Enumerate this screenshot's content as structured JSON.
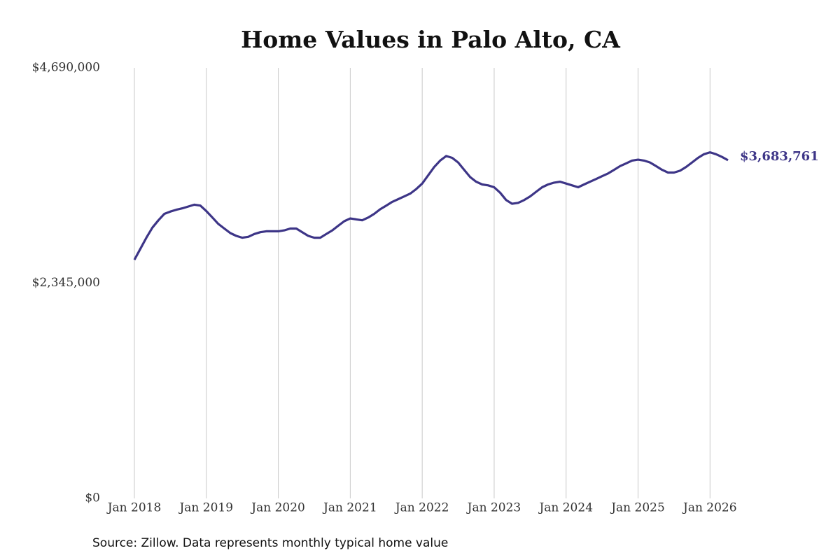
{
  "chart_data": {
    "type": "line",
    "title": "Home Values in Palo Alto, CA",
    "source": "Source: Zillow. Data represents monthly typical home value",
    "x": [
      "2018-01",
      "2018-02",
      "2018-03",
      "2018-04",
      "2018-05",
      "2018-06",
      "2018-07",
      "2018-08",
      "2018-09",
      "2018-10",
      "2018-11",
      "2018-12",
      "2019-01",
      "2019-02",
      "2019-03",
      "2019-04",
      "2019-05",
      "2019-06",
      "2019-07",
      "2019-08",
      "2019-09",
      "2019-10",
      "2019-11",
      "2019-12",
      "2020-01",
      "2020-02",
      "2020-03",
      "2020-04",
      "2020-05",
      "2020-06",
      "2020-07",
      "2020-08",
      "2020-09",
      "2020-10",
      "2020-11",
      "2020-12",
      "2021-01",
      "2021-02",
      "2021-03",
      "2021-04",
      "2021-05",
      "2021-06",
      "2021-07",
      "2021-08",
      "2021-09",
      "2021-10",
      "2021-11",
      "2021-12",
      "2022-01",
      "2022-02",
      "2022-03",
      "2022-04",
      "2022-05",
      "2022-06",
      "2022-07",
      "2022-08",
      "2022-09",
      "2022-10",
      "2022-11",
      "2022-12",
      "2023-01",
      "2023-02",
      "2023-03",
      "2023-04",
      "2023-05",
      "2023-06",
      "2023-07",
      "2023-08",
      "2023-09",
      "2023-10",
      "2023-11",
      "2023-12",
      "2024-01",
      "2024-02",
      "2024-03",
      "2024-04",
      "2024-05",
      "2024-06",
      "2024-07",
      "2024-08",
      "2024-09",
      "2024-10",
      "2024-11",
      "2024-12",
      "2025-01",
      "2025-02",
      "2025-03",
      "2025-04",
      "2025-05",
      "2025-06",
      "2025-07",
      "2025-08",
      "2025-09",
      "2025-10",
      "2025-11",
      "2025-12",
      "2026-01",
      "2026-02",
      "2026-03",
      "2026-04"
    ],
    "series": [
      {
        "name": "Palo Alto, CA",
        "color": "#3d3587",
        "values": [
          2600000,
          2720000,
          2840000,
          2950000,
          3030000,
          3100000,
          3125000,
          3145000,
          3160000,
          3180000,
          3200000,
          3190000,
          3130000,
          3060000,
          2990000,
          2940000,
          2890000,
          2860000,
          2840000,
          2850000,
          2880000,
          2900000,
          2910000,
          2910000,
          2910000,
          2920000,
          2940000,
          2940000,
          2900000,
          2860000,
          2840000,
          2840000,
          2880000,
          2920000,
          2970000,
          3020000,
          3050000,
          3040000,
          3030000,
          3060000,
          3100000,
          3150000,
          3190000,
          3230000,
          3260000,
          3290000,
          3320000,
          3370000,
          3430000,
          3520000,
          3610000,
          3680000,
          3730000,
          3710000,
          3660000,
          3580000,
          3500000,
          3450000,
          3420000,
          3410000,
          3390000,
          3330000,
          3250000,
          3210000,
          3220000,
          3250000,
          3290000,
          3340000,
          3390000,
          3420000,
          3440000,
          3450000,
          3430000,
          3410000,
          3390000,
          3420000,
          3450000,
          3480000,
          3510000,
          3540000,
          3580000,
          3620000,
          3650000,
          3680000,
          3690000,
          3680000,
          3660000,
          3620000,
          3580000,
          3550000,
          3550000,
          3570000,
          3610000,
          3660000,
          3710000,
          3750000,
          3770000,
          3750000,
          3720000,
          3683761
        ],
        "end_label": "$3,683,761"
      }
    ],
    "ylim": [
      0,
      4690000
    ],
    "yticks": [
      {
        "value": 0,
        "label": "$0"
      },
      {
        "value": 2345000,
        "label": "$2,345,000"
      },
      {
        "value": 4690000,
        "label": "$4,690,000"
      }
    ],
    "xticks": [
      {
        "value": "2018-01",
        "label": "Jan 2018"
      },
      {
        "value": "2019-01",
        "label": "Jan 2019"
      },
      {
        "value": "2020-01",
        "label": "Jan 2020"
      },
      {
        "value": "2021-01",
        "label": "Jan 2021"
      },
      {
        "value": "2022-01",
        "label": "Jan 2022"
      },
      {
        "value": "2023-01",
        "label": "Jan 2023"
      },
      {
        "value": "2024-01",
        "label": "Jan 2024"
      },
      {
        "value": "2025-01",
        "label": "Jan 2025"
      },
      {
        "value": "2026-01",
        "label": "Jan 2026"
      }
    ],
    "grid": "x"
  }
}
